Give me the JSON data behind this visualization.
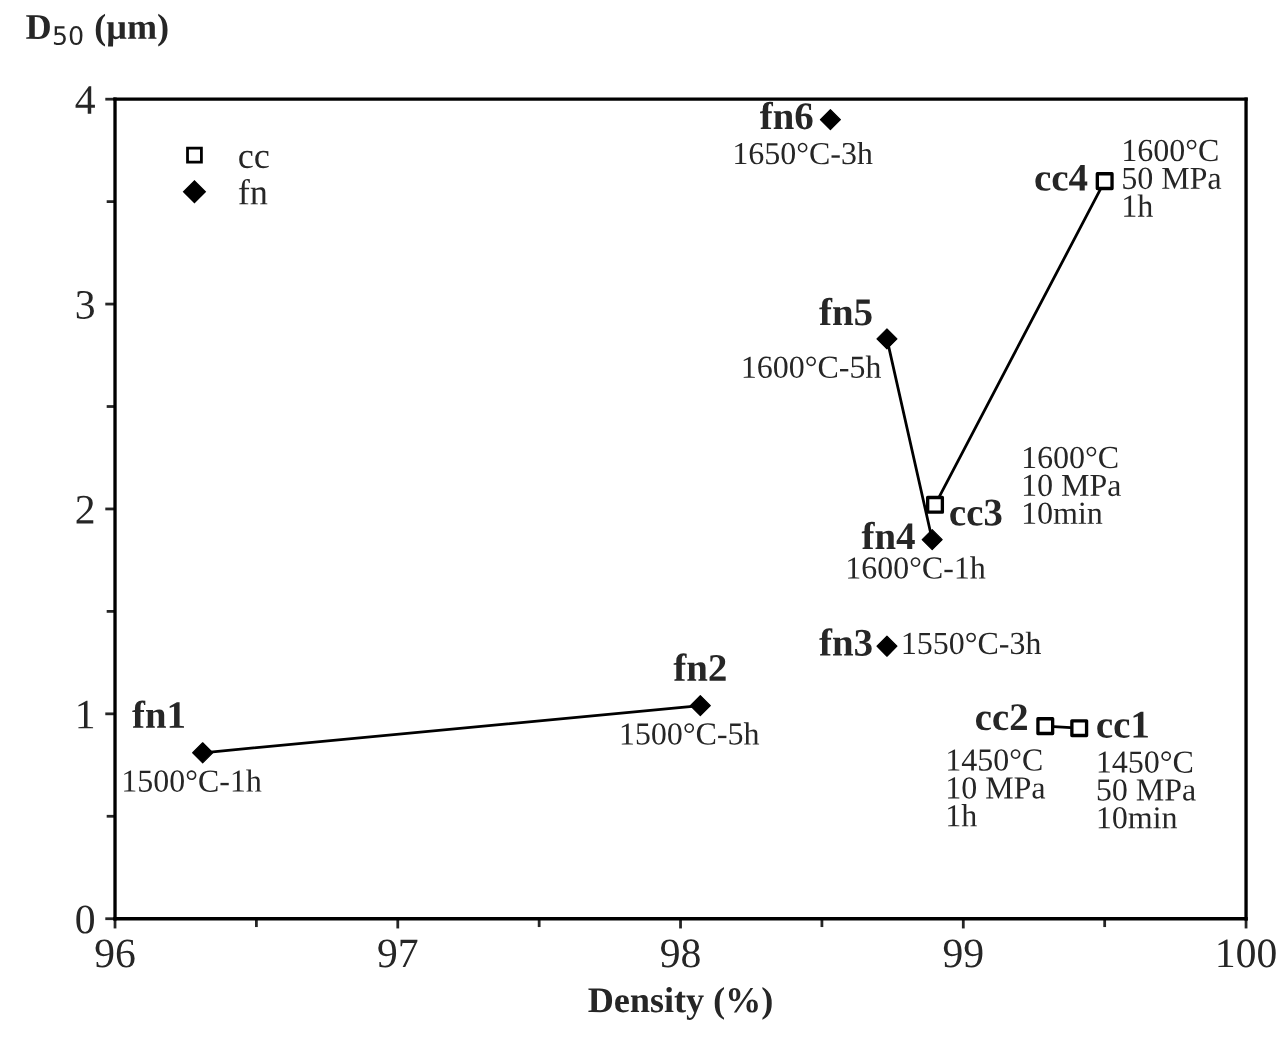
{
  "chart_data": {
    "type": "scatter",
    "xlabel": "Density (%)",
    "ylabel": "D$_{50}$ (µm)",
    "xlim": [
      96,
      100
    ],
    "xticks": [
      96,
      97,
      98,
      99,
      100
    ],
    "ylim": [
      0,
      4
    ],
    "yticks": [
      0,
      1,
      2,
      3,
      4
    ],
    "grid": false,
    "legend": "top left",
    "series": [
      {
        "type": "line",
        "color": "#000000",
        "marker": "none",
        "x": [
          96.31,
          98.07
        ],
        "values": [
          0.81,
          1.04
        ]
      },
      {
        "type": "line",
        "color": "#000000",
        "marker": "none",
        "x": [
          98.89,
          98.73
        ],
        "values": [
          1.85,
          2.83
        ]
      },
      {
        "type": "line",
        "color": "#000000",
        "marker": "none",
        "x": [
          98.9,
          99.5
        ],
        "values": [
          2.02,
          3.6
        ]
      },
      {
        "type": "line",
        "color": "#000000",
        "marker": "none",
        "x": [
          99.29,
          99.41
        ],
        "values": [
          0.94,
          0.93
        ]
      },
      {
        "type": "scatter",
        "name": "cc",
        "color": "#000000",
        "marker": "square",
        "x": [
          99.41,
          99.29,
          98.9,
          99.5
        ],
        "values": [
          0.93,
          0.94,
          2.02,
          3.6
        ]
      },
      {
        "type": "scatter",
        "name": "fn",
        "color": "#000000",
        "marker": "diamond",
        "x": [
          96.31,
          98.07,
          98.73,
          98.89,
          98.73,
          98.53
        ],
        "values": [
          0.81,
          1.04,
          1.33,
          1.85,
          2.83,
          3.9
        ]
      }
    ],
    "annotations": [
      {
        "text": "fn1",
        "x": 96.31,
        "y": 0.81
      },
      {
        "text": "1500°C-1h",
        "x": 96.31,
        "y": 0.81
      },
      {
        "text": "fn2",
        "x": 98.07,
        "y": 1.04
      },
      {
        "text": "1500°C-5h",
        "x": 98.07,
        "y": 1.04
      },
      {
        "text": "fn3",
        "x": 98.73,
        "y": 1.33
      },
      {
        "text": "1550°C-3h",
        "x": 98.73,
        "y": 1.33
      },
      {
        "text": "fn4",
        "x": 98.89,
        "y": 1.85
      },
      {
        "text": "1600°C-1h",
        "x": 98.89,
        "y": 1.85
      },
      {
        "text": "fn5",
        "x": 98.73,
        "y": 2.83
      },
      {
        "text": "1600°C-5h",
        "x": 98.73,
        "y": 2.83
      },
      {
        "text": "fn6",
        "x": 98.53,
        "y": 3.9
      },
      {
        "text": "1650°C-3h",
        "x": 98.53,
        "y": 3.9
      },
      {
        "text": "cc1",
        "x": 99.41,
        "y": 0.93
      },
      {
        "text": "1450°C\n50 MPa\n10min",
        "x": 99.41,
        "y": 0.93
      },
      {
        "text": "cc2",
        "x": 99.29,
        "y": 0.94
      },
      {
        "text": "1450°C\n10 MPa\n1h",
        "x": 99.29,
        "y": 0.94
      },
      {
        "text": "cc3",
        "x": 98.9,
        "y": 2.02
      },
      {
        "text": "1600°C\n10 MPa\n10min",
        "x": 98.9,
        "y": 2.02
      },
      {
        "text": "cc4",
        "x": 99.5,
        "y": 3.6
      },
      {
        "text": "1600°C\n50 MPa\n1h",
        "x": 99.5,
        "y": 3.6
      }
    ]
  }
}
